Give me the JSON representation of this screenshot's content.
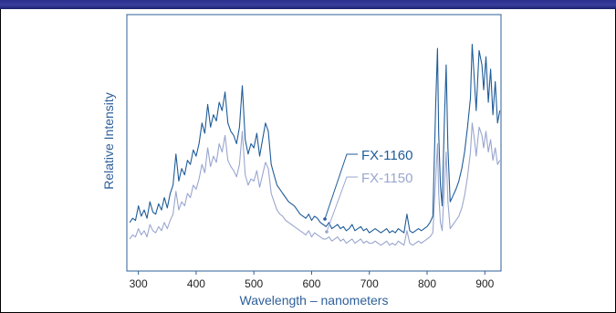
{
  "chart_data": {
    "type": "line",
    "title": "",
    "xlabel": "Wavelength – nanometers",
    "ylabel": "Relative Intensity",
    "xlim": [
      280,
      928
    ],
    "ylim": [
      0,
      100
    ],
    "xticks": [
      300,
      400,
      500,
      600,
      700,
      800,
      900
    ],
    "grid": false,
    "legend": "inline-annotations",
    "series": [
      {
        "name": "FX-1160",
        "color": "#1f5c99",
        "x": [
          285,
          290,
          295,
          300,
          305,
          310,
          315,
          320,
          325,
          330,
          335,
          340,
          345,
          350,
          355,
          360,
          365,
          370,
          375,
          380,
          385,
          390,
          395,
          400,
          405,
          410,
          415,
          420,
          425,
          430,
          435,
          440,
          445,
          450,
          455,
          460,
          465,
          470,
          475,
          480,
          485,
          490,
          495,
          500,
          505,
          510,
          515,
          520,
          525,
          530,
          535,
          540,
          545,
          550,
          555,
          560,
          565,
          570,
          575,
          580,
          585,
          590,
          595,
          600,
          605,
          610,
          615,
          620,
          625,
          630,
          635,
          640,
          645,
          650,
          655,
          660,
          665,
          670,
          675,
          680,
          685,
          690,
          695,
          700,
          705,
          710,
          715,
          720,
          725,
          730,
          735,
          740,
          745,
          750,
          755,
          760,
          765,
          770,
          775,
          780,
          785,
          790,
          795,
          800,
          805,
          810,
          815,
          818,
          820,
          823,
          826,
          830,
          833,
          836,
          840,
          845,
          850,
          855,
          860,
          865,
          870,
          875,
          878,
          882,
          885,
          890,
          895,
          898,
          902,
          906,
          910,
          914,
          918,
          922,
          926
        ],
        "y": [
          12,
          14,
          13,
          20,
          15,
          18,
          14,
          22,
          17,
          16,
          21,
          18,
          24,
          19,
          26,
          30,
          45,
          32,
          38,
          35,
          42,
          40,
          47,
          44,
          50,
          60,
          55,
          69,
          58,
          64,
          61,
          70,
          66,
          75,
          60,
          56,
          54,
          50,
          58,
          78,
          52,
          45,
          50,
          48,
          55,
          44,
          52,
          60,
          56,
          40,
          35,
          30,
          28,
          26,
          24,
          22,
          21,
          20,
          18,
          16,
          15,
          14,
          16,
          13,
          15,
          14,
          12,
          11,
          10,
          12,
          9,
          10,
          11,
          9,
          10,
          8,
          9,
          11,
          8,
          9,
          10,
          8,
          9,
          7,
          8,
          9,
          8,
          7,
          8,
          9,
          7,
          8,
          7,
          9,
          8,
          7,
          16,
          8,
          7,
          8,
          9,
          8,
          9,
          10,
          12,
          15,
          70,
          96,
          55,
          30,
          20,
          62,
          88,
          48,
          22,
          25,
          28,
          32,
          38,
          46,
          58,
          72,
          98,
          80,
          66,
          95,
          88,
          76,
          92,
          70,
          86,
          64,
          80,
          60,
          66
        ]
      },
      {
        "name": "FX-1150",
        "color": "#9aa6cf",
        "x": [
          285,
          290,
          295,
          300,
          305,
          310,
          315,
          320,
          325,
          330,
          335,
          340,
          345,
          350,
          355,
          360,
          365,
          370,
          375,
          380,
          385,
          390,
          395,
          400,
          405,
          410,
          415,
          420,
          425,
          430,
          435,
          440,
          445,
          450,
          455,
          460,
          465,
          470,
          475,
          480,
          485,
          490,
          495,
          500,
          505,
          510,
          515,
          520,
          525,
          530,
          535,
          540,
          545,
          550,
          555,
          560,
          565,
          570,
          575,
          580,
          585,
          590,
          595,
          600,
          605,
          610,
          615,
          620,
          625,
          630,
          635,
          640,
          645,
          650,
          655,
          660,
          665,
          670,
          675,
          680,
          685,
          690,
          695,
          700,
          705,
          710,
          715,
          720,
          725,
          730,
          735,
          740,
          745,
          750,
          755,
          760,
          765,
          770,
          775,
          780,
          785,
          790,
          795,
          800,
          805,
          810,
          815,
          818,
          820,
          823,
          826,
          830,
          833,
          836,
          840,
          845,
          850,
          855,
          860,
          865,
          870,
          875,
          878,
          882,
          885,
          890,
          895,
          898,
          902,
          906,
          910,
          914,
          918,
          922,
          926
        ],
        "y": [
          4,
          6,
          5,
          9,
          6,
          8,
          5,
          11,
          8,
          7,
          10,
          8,
          12,
          9,
          13,
          16,
          27,
          18,
          22,
          20,
          26,
          24,
          30,
          28,
          33,
          40,
          36,
          48,
          39,
          44,
          41,
          50,
          46,
          54,
          42,
          39,
          37,
          34,
          40,
          56,
          35,
          30,
          33,
          32,
          37,
          29,
          35,
          41,
          38,
          26,
          22,
          18,
          16,
          15,
          13,
          12,
          11,
          10,
          9,
          8,
          7,
          6,
          8,
          5,
          7,
          6,
          5,
          4,
          4,
          5,
          3,
          4,
          5,
          3,
          4,
          2,
          3,
          4,
          2,
          3,
          4,
          2,
          3,
          2,
          2,
          3,
          2,
          1,
          2,
          3,
          1,
          2,
          1,
          3,
          2,
          1,
          8,
          2,
          1,
          2,
          3,
          2,
          3,
          4,
          5,
          7,
          34,
          50,
          26,
          12,
          8,
          30,
          46,
          22,
          9,
          11,
          13,
          15,
          19,
          25,
          34,
          46,
          60,
          52,
          44,
          58,
          54,
          48,
          56,
          46,
          52,
          42,
          48,
          40,
          42
        ]
      }
    ]
  }
}
